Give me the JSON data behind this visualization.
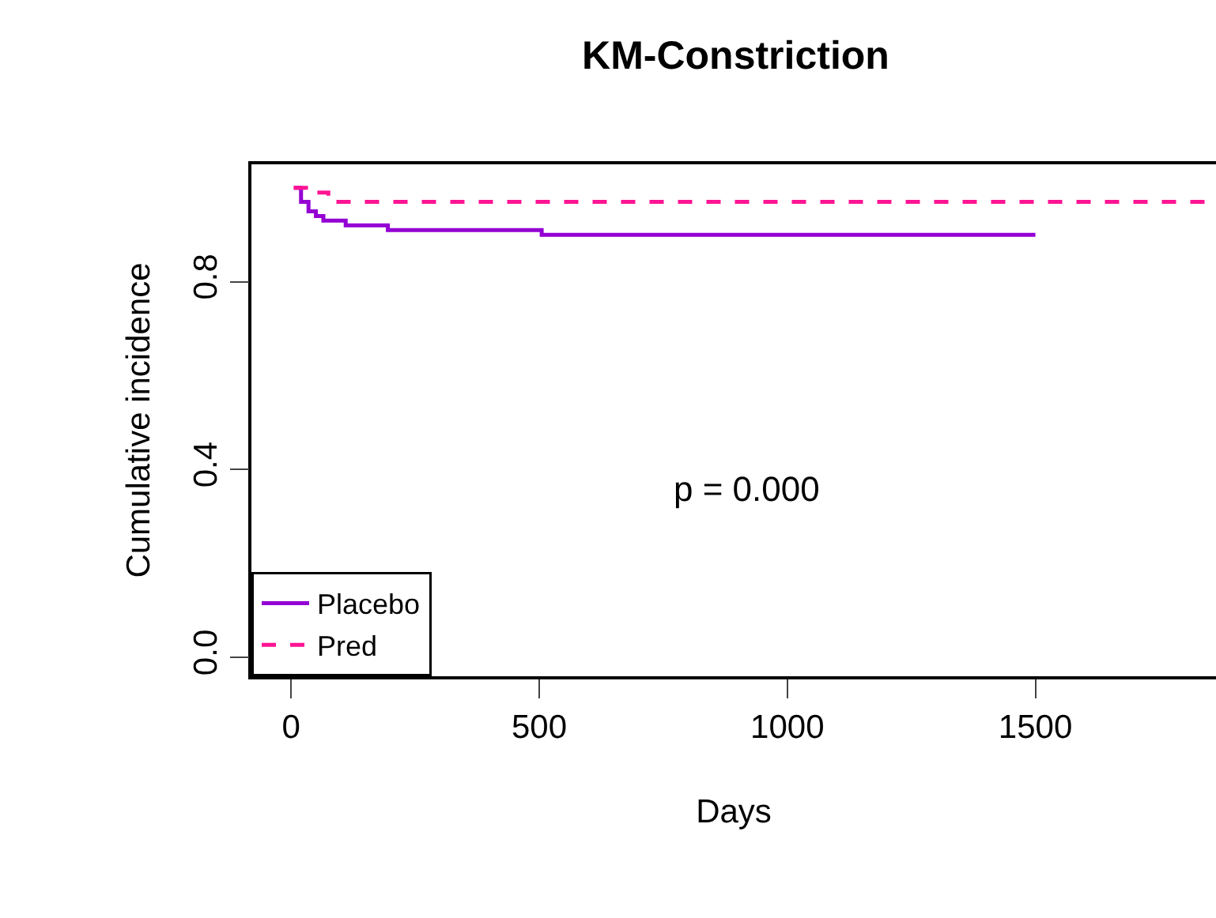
{
  "chart_data": {
    "type": "step",
    "title": "KM-Constriction",
    "xlabel": "Days",
    "ylabel": "Cumulative incidence",
    "xlim": [
      -80,
      1864
    ],
    "xticks": [
      0,
      500,
      1000,
      1500
    ],
    "ylim": [
      -0.04,
      1.05
    ],
    "yticks": [
      {
        "value": 0,
        "label": "0.0"
      },
      0.4,
      0.8
    ],
    "series": [
      {
        "name": "Placebo",
        "color": "#9400d3",
        "line_style": "solid",
        "x": [
          6,
          20,
          35,
          50,
          65,
          80,
          110,
          195,
          505,
          1500
        ],
        "values": [
          1.0,
          0.97,
          0.95,
          0.94,
          0.93,
          0.93,
          0.92,
          0.91,
          0.9,
          0.9
        ]
      },
      {
        "name": "Pred",
        "color": "#ff1493",
        "line_style": "dashed",
        "x": [
          5,
          30,
          75,
          1850
        ],
        "values": [
          1.0,
          0.99,
          0.97,
          0.97
        ]
      }
    ],
    "annotations": [
      "p = 0.000"
    ],
    "grid": false,
    "legend": "bottom left",
    "marker": "none"
  }
}
